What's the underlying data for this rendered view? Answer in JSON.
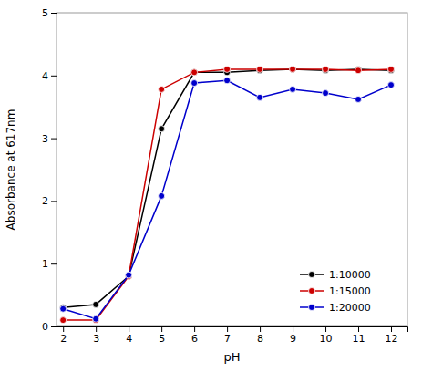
{
  "chart_data": {
    "type": "line",
    "xlabel": "pH",
    "ylabel": "Absorbance at 617nm",
    "x": [
      2,
      3,
      4,
      5,
      6,
      7,
      8,
      9,
      10,
      11,
      12
    ],
    "series": [
      {
        "name": "1:10000",
        "color": "#000000",
        "values": [
          0.3,
          0.35,
          0.8,
          3.15,
          4.05,
          4.05,
          4.08,
          4.1,
          4.08,
          4.1,
          4.08
        ]
      },
      {
        "name": "1:15000",
        "color": "#cc0000",
        "values": [
          0.1,
          0.1,
          0.8,
          3.78,
          4.05,
          4.1,
          4.1,
          4.1,
          4.1,
          4.08,
          4.1
        ]
      },
      {
        "name": "1:20000",
        "color": "#0000cc",
        "values": [
          0.28,
          0.12,
          0.82,
          2.08,
          3.88,
          3.92,
          3.65,
          3.78,
          3.72,
          3.62,
          3.85
        ]
      }
    ],
    "xlim": [
      1.8,
      12.5
    ],
    "ylim": [
      0,
      5
    ],
    "xticks": [
      2,
      3,
      4,
      5,
      6,
      7,
      8,
      9,
      10,
      11,
      12
    ],
    "yticks": [
      0,
      1,
      2,
      3,
      4,
      5
    ],
    "marker": "circle",
    "legend": "lower right",
    "grid": false
  }
}
